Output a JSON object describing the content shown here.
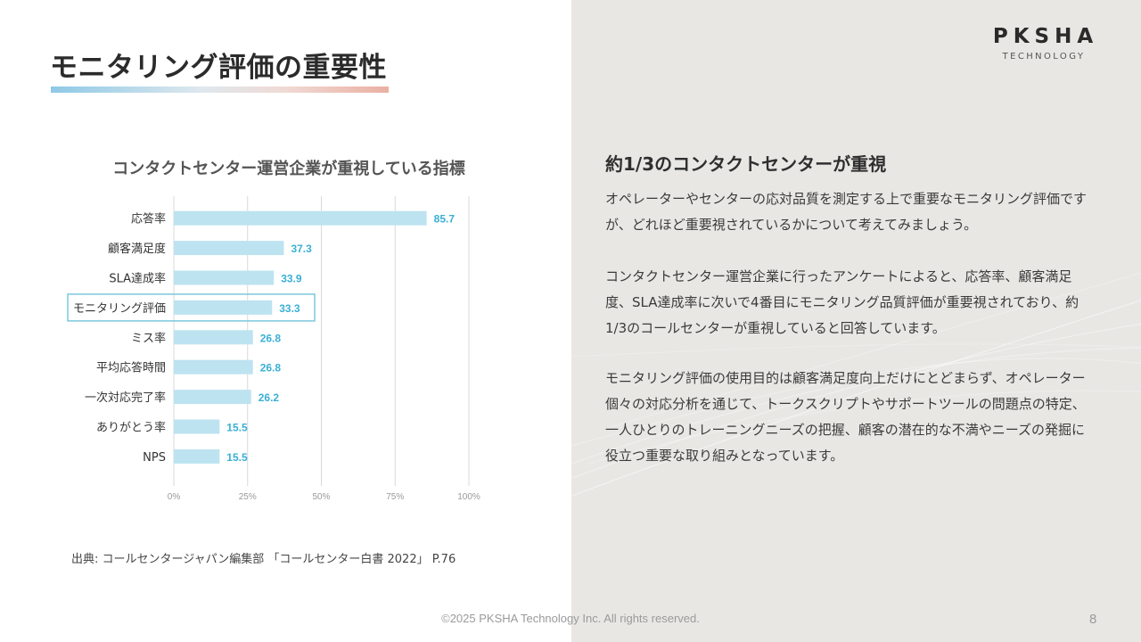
{
  "slide": {
    "title": "モニタリング評価の重要性",
    "logo": {
      "main": "PKSHA",
      "sub": "TECHNOLOGY"
    },
    "right": {
      "heading": "約1/3のコンタクトセンターが重視",
      "paragraphs": [
        "オペレーターやセンターの応対品質を測定する上で重要なモニタリング評価ですが、どれほど重要視されているかについて考えてみましょう。",
        "コンタクトセンター運営企業に行ったアンケートによると、応答率、顧客満足度、SLA達成率に次いで4番目にモニタリング品質評価が重要視されており、約1/3のコールセンターが重視していると回答しています。",
        "モニタリング評価の使用目的は顧客満足度向上だけにとどまらず、オペレーター個々の対応分析を通じて、トークスクリプトやサポートツールの問題点の特定、一人ひとりのトレーニングニーズの把握、顧客の潜在的な不満やニーズの発掘に役立つ重要な取り組みとなっています。"
      ]
    },
    "source": "出典: コールセンタージャパン編集部 「コールセンター白書 2022」 P.76",
    "footer": "©2025 PKSHA Technology Inc. All rights reserved.",
    "page_number": "8"
  },
  "chart_data": {
    "type": "bar",
    "orientation": "horizontal",
    "title": "コンタクトセンター運営企業が重視している指標",
    "categories": [
      "応答率",
      "顧客満足度",
      "SLA達成率",
      "モニタリング評価",
      "ミス率",
      "平均応答時間",
      "一次対応完了率",
      "ありがとう率",
      "NPS"
    ],
    "values": [
      85.7,
      37.3,
      33.9,
      33.3,
      26.8,
      26.8,
      26.2,
      15.5,
      15.5
    ],
    "highlight_category": "モニタリング評価",
    "xlim": [
      0,
      100
    ],
    "xticks": [
      "0%",
      "25%",
      "50%",
      "75%",
      "100%"
    ],
    "grid": true,
    "colors": {
      "bar": "#bde3f0",
      "label": "#3ab0d4",
      "highlight_border": "#7cc8dc"
    }
  }
}
